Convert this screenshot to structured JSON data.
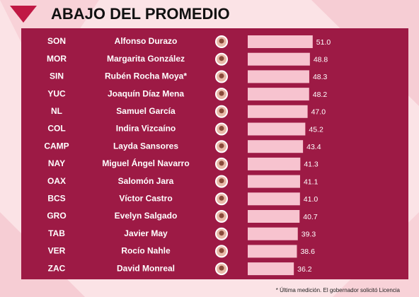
{
  "chart_data": {
    "type": "bar",
    "title": "ABAJO DEL PROMEDIO",
    "categories": [
      "SON",
      "MOR",
      "SIN",
      "YUC",
      "NL",
      "COL",
      "CAMP",
      "NAY",
      "OAX",
      "BCS",
      "GRO",
      "TAB",
      "VER",
      "ZAC"
    ],
    "names": [
      "Alfonso Durazo",
      "Margarita González",
      "Rubén Rocha Moya*",
      "Joaquín Díaz Mena",
      "Samuel García",
      "Indira Vizcaíno",
      "Layda Sansores",
      "Miguel Ángel Navarro",
      "Salomón Jara",
      "Víctor Castro",
      "Evelyn Salgado",
      "Javier May",
      "Rocío Nahle",
      "David Monreal"
    ],
    "values": [
      51.0,
      48.8,
      48.3,
      48.2,
      47.0,
      45.2,
      43.4,
      41.3,
      41.1,
      41.0,
      40.7,
      39.3,
      38.6,
      36.2
    ],
    "value_labels": [
      "51.0",
      "48.8",
      "48.3",
      "48.2",
      "47.0",
      "45.2",
      "43.4",
      "41.3",
      "41.1",
      "41.0",
      "40.7",
      "39.3",
      "38.6",
      "36.2"
    ],
    "color": "#f7c3cf",
    "footnote": "* Última medición. El gobernador solicitó Licencia"
  }
}
